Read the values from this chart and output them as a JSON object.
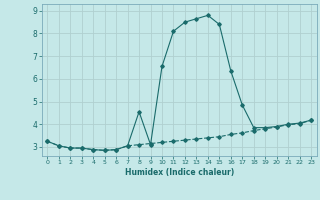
{
  "xlabel": "Humidex (Indice chaleur)",
  "bg_color": "#c5e8e8",
  "grid_color": "#b0d0d0",
  "line_color": "#1a6b6b",
  "spine_color": "#7aaaba",
  "xlim": [
    -0.5,
    23.5
  ],
  "ylim": [
    2.6,
    9.3
  ],
  "yticks": [
    3,
    4,
    5,
    6,
    7,
    8,
    9
  ],
  "xticks": [
    0,
    1,
    2,
    3,
    4,
    5,
    6,
    7,
    8,
    9,
    10,
    11,
    12,
    13,
    14,
    15,
    16,
    17,
    18,
    19,
    20,
    21,
    22,
    23
  ],
  "curve1_x": [
    0,
    1,
    2,
    3,
    4,
    5,
    6,
    7,
    8,
    9,
    10,
    11,
    12,
    13,
    14,
    15,
    16,
    17,
    18,
    19,
    20,
    21,
    22,
    23
  ],
  "curve1_y": [
    3.25,
    3.05,
    2.95,
    2.95,
    2.88,
    2.85,
    2.88,
    3.05,
    3.1,
    3.15,
    3.2,
    3.25,
    3.3,
    3.35,
    3.4,
    3.45,
    3.55,
    3.62,
    3.72,
    3.8,
    3.88,
    3.98,
    4.02,
    4.18
  ],
  "curve2_x": [
    0,
    1,
    2,
    3,
    4,
    5,
    6,
    7,
    8,
    9,
    10,
    11,
    12,
    13,
    14,
    15,
    16,
    17,
    18,
    19,
    20,
    21,
    22,
    23
  ],
  "curve2_y": [
    3.25,
    3.05,
    2.95,
    2.95,
    2.88,
    2.85,
    2.88,
    3.05,
    4.55,
    3.1,
    6.55,
    8.1,
    8.5,
    8.65,
    8.8,
    8.4,
    6.35,
    4.85,
    3.85,
    3.85,
    3.9,
    4.0,
    4.05,
    4.18
  ]
}
